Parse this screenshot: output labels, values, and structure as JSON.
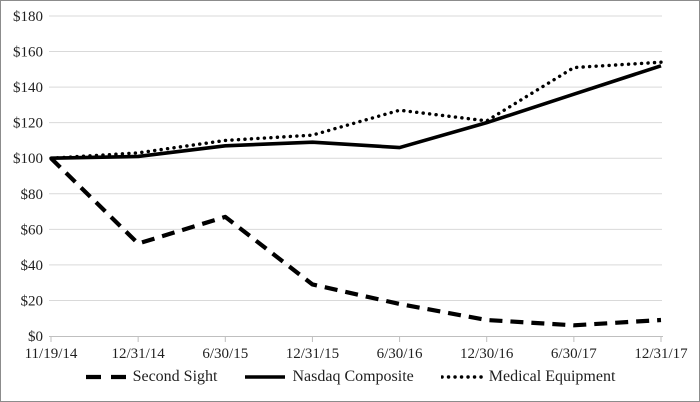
{
  "chart_data": {
    "type": "line",
    "title": "",
    "xlabel": "",
    "ylabel": "",
    "x_categories": [
      "11/19/14",
      "12/31/14",
      "6/30/15",
      "12/31/15",
      "6/30/16",
      "12/30/16",
      "6/30/17",
      "12/31/17"
    ],
    "y_tick_labels": [
      "$0",
      "$20",
      "$40",
      "$60",
      "$80",
      "$100",
      "$120",
      "$140",
      "$160",
      "$180"
    ],
    "ylim": [
      0,
      180
    ],
    "y_tick_step": 20,
    "grid": "horizontal-only",
    "legend_position": "bottom",
    "series": [
      {
        "name": "Second Sight",
        "style": "dashed",
        "color": "#000000",
        "values": [
          100,
          52,
          67,
          29,
          18,
          9,
          6,
          9
        ]
      },
      {
        "name": "Nasdaq Composite",
        "style": "solid",
        "color": "#000000",
        "values": [
          100,
          101,
          107,
          109,
          106,
          120,
          136,
          152
        ]
      },
      {
        "name": "Medical Equipment",
        "style": "dotted",
        "color": "#000000",
        "values": [
          100,
          103,
          110,
          113,
          127,
          121,
          151,
          154
        ]
      }
    ],
    "colors": {
      "background": "#ffffff",
      "gridline": "#d9d9d9",
      "axis": "#bfbfbf",
      "text": "#1f1f1f",
      "series": "#000000",
      "frame_border": "#8c8c8c"
    }
  }
}
